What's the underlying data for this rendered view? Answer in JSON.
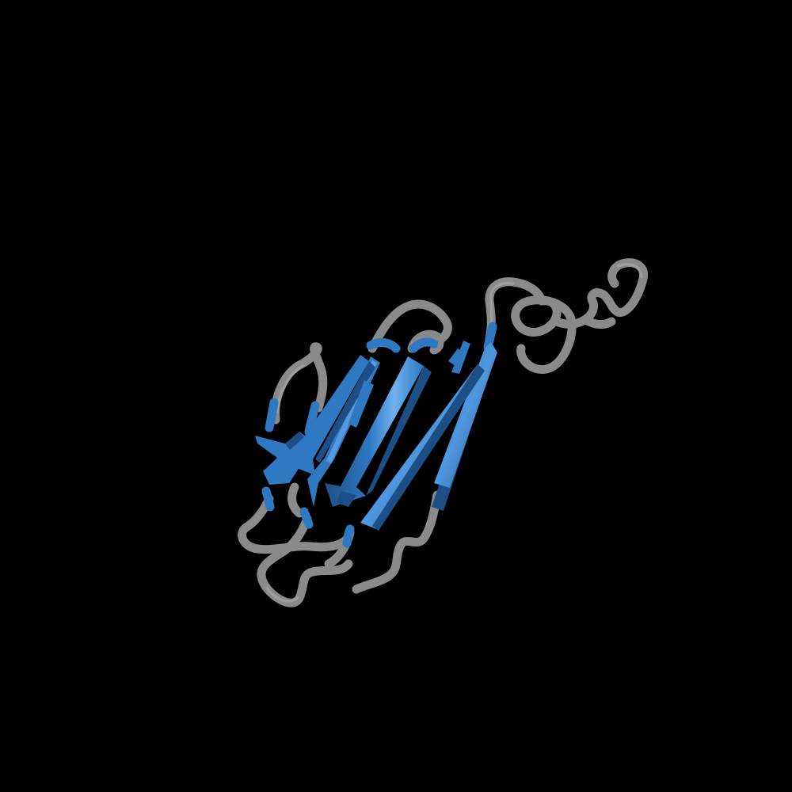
{
  "scene": {
    "background_color": "#000000",
    "subject": "protein-cartoon",
    "colors": {
      "beta_strand": "#2f78c2",
      "beta_strand_highlight": "#6fb0f0",
      "beta_strand_shadow": "#1d4f86",
      "coil": "#8a8a8a",
      "coil_highlight": "#b0b0b0"
    }
  }
}
